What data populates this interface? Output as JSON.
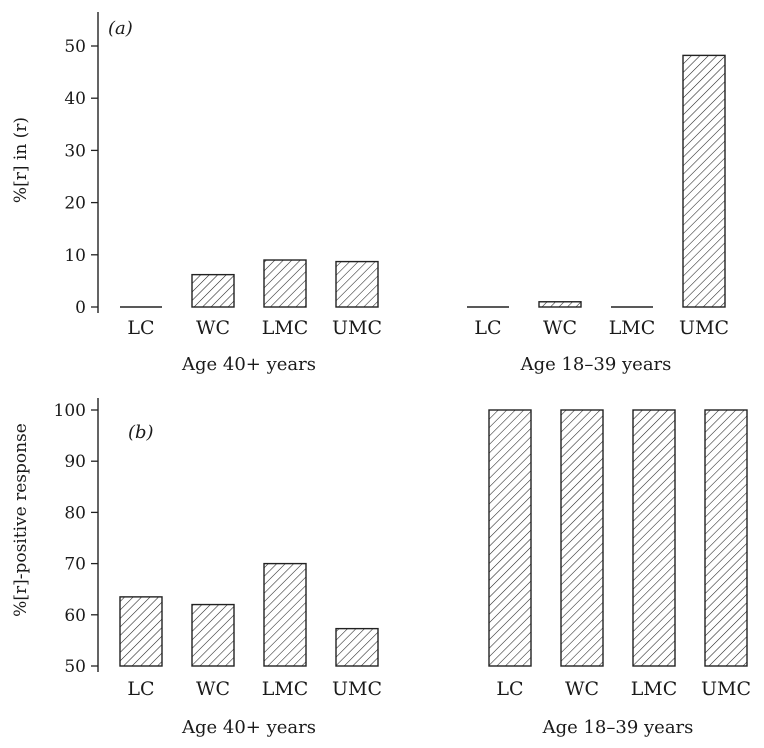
{
  "chart_data": [
    {
      "type": "bar",
      "panel_label": "(a)",
      "ylabel": "%[r] in (r)",
      "ylim": [
        0,
        50
      ],
      "yticks": [
        "0",
        "10",
        "20",
        "30",
        "40",
        "50"
      ],
      "groups": [
        {
          "label": "Age 40+ years",
          "categories": [
            "LC",
            "WC",
            "LMC",
            "UMC"
          ],
          "values": [
            0,
            6.2,
            9,
            8.7
          ]
        },
        {
          "label": "Age 18–39 years",
          "categories": [
            "LC",
            "WC",
            "LMC",
            "UMC"
          ],
          "values": [
            0,
            1,
            0,
            48.2
          ]
        }
      ],
      "fill": "diagonal hatch",
      "grid": false,
      "legend": "none"
    },
    {
      "type": "bar",
      "panel_label": "(b)",
      "ylabel": "%[r]-positive response",
      "ylim": [
        50,
        100
      ],
      "yticks": [
        "50",
        "60",
        "70",
        "80",
        "90",
        "100"
      ],
      "groups": [
        {
          "label": "Age 40+ years",
          "categories": [
            "LC",
            "WC",
            "LMC",
            "UMC"
          ],
          "values": [
            63.5,
            62,
            70,
            57.3
          ]
        },
        {
          "label": "Age 18–39 years",
          "categories": [
            "LC",
            "WC",
            "LMC",
            "UMC"
          ],
          "values": [
            100,
            100,
            100,
            100
          ]
        }
      ],
      "fill": "diagonal hatch",
      "grid": false,
      "legend": "none"
    }
  ]
}
